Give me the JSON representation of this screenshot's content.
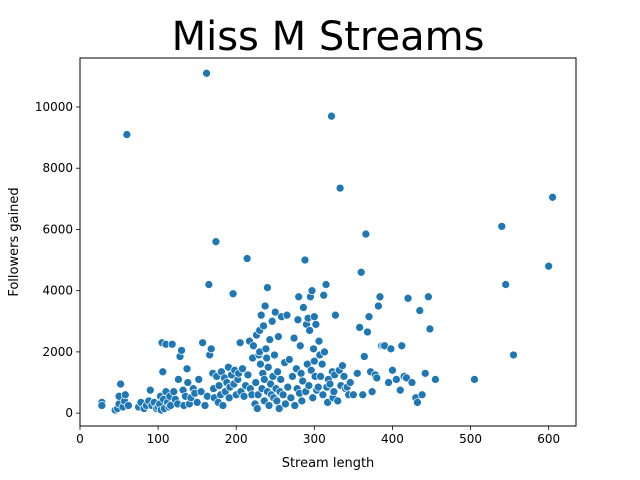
{
  "chart_data": {
    "type": "scatter",
    "title": "Miss M Streams",
    "xlabel": "Stream length",
    "ylabel": "Followers gained",
    "xlim": [
      0,
      635
    ],
    "ylim": [
      -420,
      11600
    ],
    "xticks": [
      0,
      100,
      200,
      300,
      400,
      500,
      600
    ],
    "yticks": [
      0,
      2000,
      4000,
      6000,
      8000,
      10000
    ],
    "grid": false,
    "legend": "none",
    "marker_color": "#1f77b4",
    "points": [
      [
        28,
        350
      ],
      [
        28,
        250
      ],
      [
        45,
        100
      ],
      [
        48,
        150
      ],
      [
        50,
        300
      ],
      [
        50,
        550
      ],
      [
        52,
        950
      ],
      [
        55,
        200
      ],
      [
        57,
        400
      ],
      [
        58,
        600
      ],
      [
        60,
        9100
      ],
      [
        62,
        250
      ],
      [
        75,
        200
      ],
      [
        78,
        350
      ],
      [
        82,
        150
      ],
      [
        85,
        250
      ],
      [
        88,
        400
      ],
      [
        90,
        750
      ],
      [
        92,
        250
      ],
      [
        95,
        350
      ],
      [
        98,
        150
      ],
      [
        100,
        200
      ],
      [
        102,
        300
      ],
      [
        103,
        550
      ],
      [
        104,
        100
      ],
      [
        105,
        2300
      ],
      [
        106,
        1350
      ],
      [
        107,
        450
      ],
      [
        108,
        150
      ],
      [
        110,
        700
      ],
      [
        110,
        2250
      ],
      [
        112,
        350
      ],
      [
        114,
        200
      ],
      [
        115,
        550
      ],
      [
        116,
        250
      ],
      [
        118,
        2250
      ],
      [
        120,
        700
      ],
      [
        122,
        450
      ],
      [
        125,
        300
      ],
      [
        126,
        1100
      ],
      [
        128,
        1850
      ],
      [
        130,
        2050
      ],
      [
        132,
        750
      ],
      [
        133,
        250
      ],
      [
        135,
        550
      ],
      [
        137,
        1450
      ],
      [
        138,
        1000
      ],
      [
        140,
        300
      ],
      [
        142,
        500
      ],
      [
        145,
        800
      ],
      [
        147,
        650
      ],
      [
        150,
        350
      ],
      [
        152,
        1100
      ],
      [
        155,
        700
      ],
      [
        157,
        2300
      ],
      [
        160,
        250
      ],
      [
        162,
        11100
      ],
      [
        163,
        550
      ],
      [
        165,
        4200
      ],
      [
        166,
        1900
      ],
      [
        168,
        2100
      ],
      [
        170,
        1300
      ],
      [
        171,
        800
      ],
      [
        172,
        500
      ],
      [
        174,
        5600
      ],
      [
        175,
        1200
      ],
      [
        177,
        350
      ],
      [
        178,
        900
      ],
      [
        180,
        600
      ],
      [
        181,
        1350
      ],
      [
        183,
        250
      ],
      [
        185,
        1150
      ],
      [
        186,
        700
      ],
      [
        188,
        1000
      ],
      [
        190,
        1500
      ],
      [
        191,
        500
      ],
      [
        192,
        850
      ],
      [
        194,
        1250
      ],
      [
        196,
        3900
      ],
      [
        197,
        950
      ],
      [
        198,
        1400
      ],
      [
        200,
        600
      ],
      [
        202,
        1100
      ],
      [
        203,
        1300
      ],
      [
        205,
        2300
      ],
      [
        206,
        700
      ],
      [
        208,
        1450
      ],
      [
        210,
        550
      ],
      [
        212,
        900
      ],
      [
        214,
        5050
      ],
      [
        215,
        1250
      ],
      [
        217,
        2350
      ],
      [
        218,
        800
      ],
      [
        220,
        600
      ],
      [
        221,
        1800
      ],
      [
        222,
        2200
      ],
      [
        224,
        300
      ],
      [
        225,
        1000
      ],
      [
        226,
        2550
      ],
      [
        227,
        150
      ],
      [
        228,
        600
      ],
      [
        229,
        1900
      ],
      [
        230,
        2000
      ],
      [
        230,
        2700
      ],
      [
        231,
        1600
      ],
      [
        232,
        3200
      ],
      [
        233,
        800
      ],
      [
        234,
        1300
      ],
      [
        235,
        2850
      ],
      [
        236,
        1100
      ],
      [
        236,
        400
      ],
      [
        237,
        3500
      ],
      [
        238,
        2100
      ],
      [
        239,
        1800
      ],
      [
        240,
        700
      ],
      [
        240,
        4100
      ],
      [
        241,
        1500
      ],
      [
        242,
        250
      ],
      [
        243,
        2400
      ],
      [
        244,
        950
      ],
      [
        245,
        600
      ],
      [
        246,
        3000
      ],
      [
        247,
        1200
      ],
      [
        248,
        500
      ],
      [
        249,
        1900
      ],
      [
        250,
        3300
      ],
      [
        251,
        800
      ],
      [
        252,
        400
      ],
      [
        253,
        1350
      ],
      [
        254,
        2500
      ],
      [
        255,
        150
      ],
      [
        256,
        700
      ],
      [
        257,
        1100
      ],
      [
        258,
        3150
      ],
      [
        260,
        600
      ],
      [
        262,
        1650
      ],
      [
        263,
        300
      ],
      [
        265,
        3200
      ],
      [
        266,
        850
      ],
      [
        268,
        1750
      ],
      [
        270,
        500
      ],
      [
        272,
        1200
      ],
      [
        274,
        2450
      ],
      [
        275,
        250
      ],
      [
        277,
        1450
      ],
      [
        278,
        800
      ],
      [
        279,
        3050
      ],
      [
        280,
        3800
      ],
      [
        281,
        650
      ],
      [
        282,
        2200
      ],
      [
        283,
        1300
      ],
      [
        284,
        400
      ],
      [
        285,
        1050
      ],
      [
        286,
        3450
      ],
      [
        288,
        5000
      ],
      [
        289,
        700
      ],
      [
        290,
        2900
      ],
      [
        291,
        1600
      ],
      [
        292,
        3100
      ],
      [
        293,
        900
      ],
      [
        294,
        2700
      ],
      [
        295,
        3800
      ],
      [
        296,
        1400
      ],
      [
        297,
        4000
      ],
      [
        298,
        500
      ],
      [
        299,
        2100
      ],
      [
        300,
        3150
      ],
      [
        300,
        1700
      ],
      [
        301,
        1200
      ],
      [
        302,
        2900
      ],
      [
        303,
        750
      ],
      [
        305,
        850
      ],
      [
        306,
        2350
      ],
      [
        307,
        1900
      ],
      [
        308,
        1200
      ],
      [
        310,
        1600
      ],
      [
        311,
        600
      ],
      [
        312,
        3850
      ],
      [
        313,
        2000
      ],
      [
        315,
        4200
      ],
      [
        316,
        850
      ],
      [
        317,
        350
      ],
      [
        318,
        1100
      ],
      [
        320,
        950
      ],
      [
        322,
        9700
      ],
      [
        323,
        1350
      ],
      [
        324,
        500
      ],
      [
        325,
        700
      ],
      [
        326,
        1250
      ],
      [
        327,
        3200
      ],
      [
        330,
        400
      ],
      [
        332,
        1400
      ],
      [
        333,
        7350
      ],
      [
        334,
        900
      ],
      [
        336,
        1550
      ],
      [
        338,
        1200
      ],
      [
        340,
        800
      ],
      [
        342,
        850
      ],
      [
        344,
        600
      ],
      [
        346,
        1000
      ],
      [
        350,
        600
      ],
      [
        355,
        1300
      ],
      [
        358,
        2800
      ],
      [
        360,
        4600
      ],
      [
        362,
        600
      ],
      [
        364,
        1850
      ],
      [
        366,
        5850
      ],
      [
        368,
        2650
      ],
      [
        370,
        3150
      ],
      [
        372,
        1350
      ],
      [
        374,
        700
      ],
      [
        378,
        1250
      ],
      [
        380,
        1150
      ],
      [
        382,
        3500
      ],
      [
        384,
        3800
      ],
      [
        386,
        2200
      ],
      [
        388,
        2200
      ],
      [
        390,
        2200
      ],
      [
        395,
        1000
      ],
      [
        398,
        2100
      ],
      [
        400,
        1400
      ],
      [
        405,
        1100
      ],
      [
        410,
        750
      ],
      [
        412,
        2200
      ],
      [
        415,
        1200
      ],
      [
        418,
        1150
      ],
      [
        420,
        3750
      ],
      [
        425,
        1000
      ],
      [
        430,
        500
      ],
      [
        432,
        350
      ],
      [
        435,
        3350
      ],
      [
        438,
        600
      ],
      [
        442,
        1300
      ],
      [
        446,
        3800
      ],
      [
        448,
        2750
      ],
      [
        455,
        1100
      ],
      [
        505,
        1100
      ],
      [
        540,
        6100
      ],
      [
        545,
        4200
      ],
      [
        555,
        1900
      ],
      [
        600,
        4800
      ],
      [
        605,
        7050
      ]
    ]
  }
}
